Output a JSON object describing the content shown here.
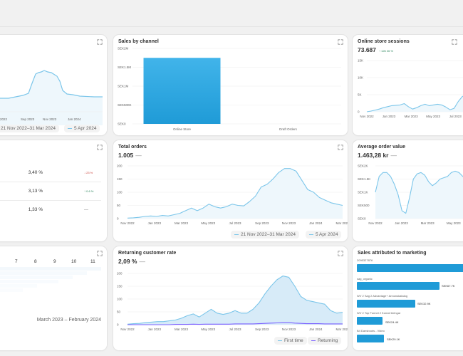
{
  "colors": {
    "accent": "#1f9bd7",
    "accent_light": "#7cc6ea",
    "fill": "#e7f4fb",
    "purple": "#7b61ff",
    "up": "#29845a",
    "down": "#c7372f"
  },
  "card_a": {
    "x_ticks": [
      "2022",
      "Sep 2023",
      "Nov 2023",
      "Jan 2024"
    ],
    "legend": [
      "21 Nov 2022–31 Mar 2024",
      "5 Apr 2024"
    ]
  },
  "sales_by_channel": {
    "title": "Sales by channel",
    "chart_data": {
      "type": "bar",
      "categories": [
        "Online Store",
        "Draft Orders"
      ],
      "values": [
        1.75,
        0
      ],
      "y_tick_labels": [
        "SEK0",
        "SEK500K",
        "SEK1M",
        "SEK1.5M",
        "SEK2M"
      ],
      "ylim": [
        0,
        2
      ]
    }
  },
  "online_store_sessions": {
    "title": "Online store sessions",
    "value": "73.687",
    "change": "↑ 126 26 %",
    "chart_data": {
      "type": "line",
      "x_tick_labels": [
        "Nov 2022",
        "Jan 2023",
        "Mar 2023",
        "May 2023",
        "Jul 2023"
      ],
      "y_tick_labels": [
        "0",
        "5K",
        "10K",
        "15K"
      ],
      "ylim": [
        0,
        15
      ],
      "values": [
        0,
        0.2,
        0.5,
        0.8,
        1.2,
        1.5,
        1.8,
        1.9,
        2.0,
        2.4,
        1.5,
        0.8,
        1.2,
        1.8,
        2.2,
        1.8,
        2.0,
        2.2,
        2.0,
        1.4,
        0.6,
        1.0,
        3.0,
        4.5,
        4.8
      ]
    }
  },
  "card_d": {
    "rows": [
      {
        "value": "3,40 %",
        "change": "↓ 23 %",
        "dir": "down"
      },
      {
        "value": "3,13 %",
        "change": "↑ 0.6 %",
        "dir": "up"
      },
      {
        "value": "1,33 %",
        "change": "—",
        "dir": "flat"
      }
    ]
  },
  "total_orders": {
    "title": "Total orders",
    "value": "1.005",
    "value_dash": "—",
    "legend": [
      "21 Nov 2022–31 Mar 2024",
      "5 Apr 2024"
    ],
    "chart_data": {
      "type": "line",
      "x_tick_labels": [
        "Nov 2022",
        "Jan 2023",
        "Mar 2023",
        "May 2023",
        "Jul 2023",
        "Sep 2023",
        "Nov 2023",
        "Jan 2024",
        "Mar 2024"
      ],
      "y_tick_labels": [
        "0",
        "50",
        "100",
        "150",
        "200"
      ],
      "ylim": [
        0,
        200
      ],
      "values": [
        2,
        3,
        5,
        8,
        10,
        8,
        12,
        10,
        15,
        20,
        30,
        40,
        30,
        40,
        55,
        45,
        40,
        45,
        55,
        50,
        48,
        65,
        85,
        120,
        130,
        150,
        175,
        190,
        190,
        180,
        145,
        110,
        100,
        80,
        70,
        60,
        55,
        50
      ]
    }
  },
  "average_order_value": {
    "title": "Average order value",
    "value": "1.463,28 kr",
    "value_dash": "—",
    "chart_data": {
      "type": "line",
      "x_tick_labels": [
        "Nov 2022",
        "Jan 2023",
        "Mar 2023",
        "May 2023"
      ],
      "y_tick_labels": [
        "SEK0",
        "SEK500",
        "SEK1K",
        "SEK1.5K",
        "SEK2K"
      ],
      "ylim": [
        0,
        2000
      ],
      "values": [
        1000,
        1600,
        1750,
        1750,
        1600,
        1300,
        900,
        300,
        200,
        800,
        1500,
        1700,
        1750,
        1650,
        1400,
        1250,
        1350,
        1500,
        1550,
        1600,
        1750,
        1800,
        1750,
        1600,
        1500
      ]
    }
  },
  "cohort": {
    "columns": [
      "7",
      "8",
      "9",
      "10",
      "11"
    ],
    "range": "March 2023 – February 2024"
  },
  "returning_customer_rate": {
    "title": "Returning customer rate",
    "value": "2,09 %",
    "value_dash": "—",
    "legend": [
      "First time",
      "Returning"
    ],
    "chart_data": {
      "type": "area",
      "x_tick_labels": [
        "Nov 2022",
        "Jan 2023",
        "Mar 2023",
        "May 2023",
        "Jul 2023",
        "Sep 2023",
        "Nov 2023",
        "Jan 2024",
        "Mar 2024"
      ],
      "y_tick_labels": [
        "0",
        "50",
        "100",
        "150",
        "200"
      ],
      "ylim": [
        0,
        200
      ],
      "series": [
        {
          "name": "First time",
          "values": [
            2,
            4,
            5,
            8,
            10,
            12,
            12,
            15,
            18,
            25,
            35,
            42,
            30,
            45,
            60,
            45,
            40,
            45,
            55,
            45,
            45,
            60,
            85,
            120,
            150,
            175,
            190,
            185,
            150,
            110,
            95,
            90,
            85,
            80,
            55,
            45,
            48
          ]
        },
        {
          "name": "Returning",
          "values": [
            0,
            0,
            0,
            0,
            0,
            0,
            0,
            0,
            1,
            1,
            1,
            2,
            1,
            2,
            2,
            2,
            2,
            2,
            3,
            3,
            3,
            3,
            4,
            5,
            6,
            7,
            8,
            8,
            6,
            5,
            4,
            4,
            4,
            3,
            3,
            3,
            3
          ]
        }
      ]
    }
  },
  "sales_attributed": {
    "title": "Sales attributed to marketing",
    "chart_data": {
      "type": "bar",
      "categories": [
        "2095327876",
        "sag_organic",
        "WV 2 Sag 2 Advantage+ Annonskatalog",
        "WV 2 Top Funnel 2 Konverteringar",
        "B4 Dansboots - Video"
      ],
      "value_labels": [
        "",
        "SEK67.7K",
        "SEK32.9K",
        "SEK24.4K",
        "SEK29.1K"
      ],
      "values": [
        100,
        67.7,
        32.9,
        24.4,
        29.1
      ]
    }
  }
}
